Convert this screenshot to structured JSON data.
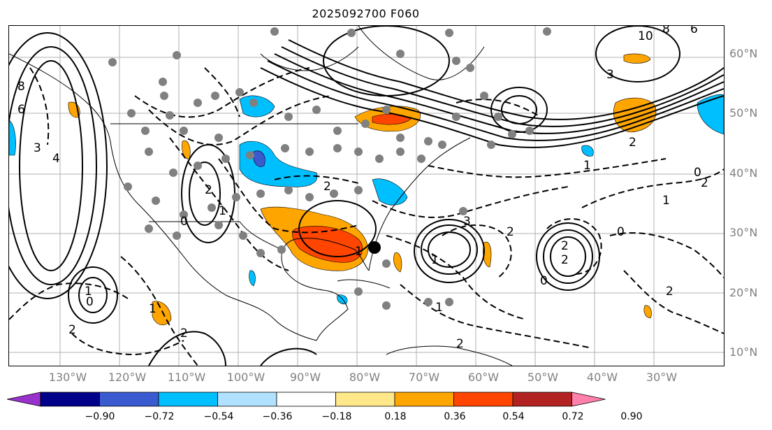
{
  "title": "2025092700 F060",
  "lat_labels": [
    "60°N",
    "50°N",
    "40°N",
    "30°N",
    "20°N",
    "10°N"
  ],
  "lon_labels": [
    "130°W",
    "120°W",
    "110°W",
    "100°W",
    "90°W",
    "80°W",
    "70°W",
    "60°W",
    "50°W",
    "40°W",
    "30°W"
  ],
  "colorbar": {
    "ticks": [
      "−0.90",
      "−0.72",
      "−0.54",
      "−0.36",
      "−0.18",
      "0.18",
      "0.36",
      "0.54",
      "0.72",
      "0.90"
    ],
    "colors": [
      "#9932cc",
      "#00008b",
      "#3a5bd0",
      "#00bfff",
      "#b0e2ff",
      "#ffffff",
      "#ffe88a",
      "#ffa500",
      "#ff4500",
      "#b22222",
      "#ff80ab"
    ]
  },
  "contour_labels": [
    "6",
    "8",
    "4",
    "3",
    "2",
    "1",
    "0",
    "10",
    "8",
    "6",
    "3",
    "2",
    "1",
    "0",
    "2",
    "1",
    "3",
    "2",
    "1",
    "2",
    "2",
    "0",
    "1",
    "2",
    "1",
    "2",
    "1",
    "0",
    "2",
    "2",
    "1",
    "0",
    "2"
  ],
  "colors": {
    "gridline": "#b0b0b0",
    "coast": "#000000",
    "dot": "#808080",
    "warm_light": "#ffa500",
    "warm_strong": "#ff4500",
    "cool": "#00bfff",
    "cool_strong": "#3a5bd0"
  }
}
